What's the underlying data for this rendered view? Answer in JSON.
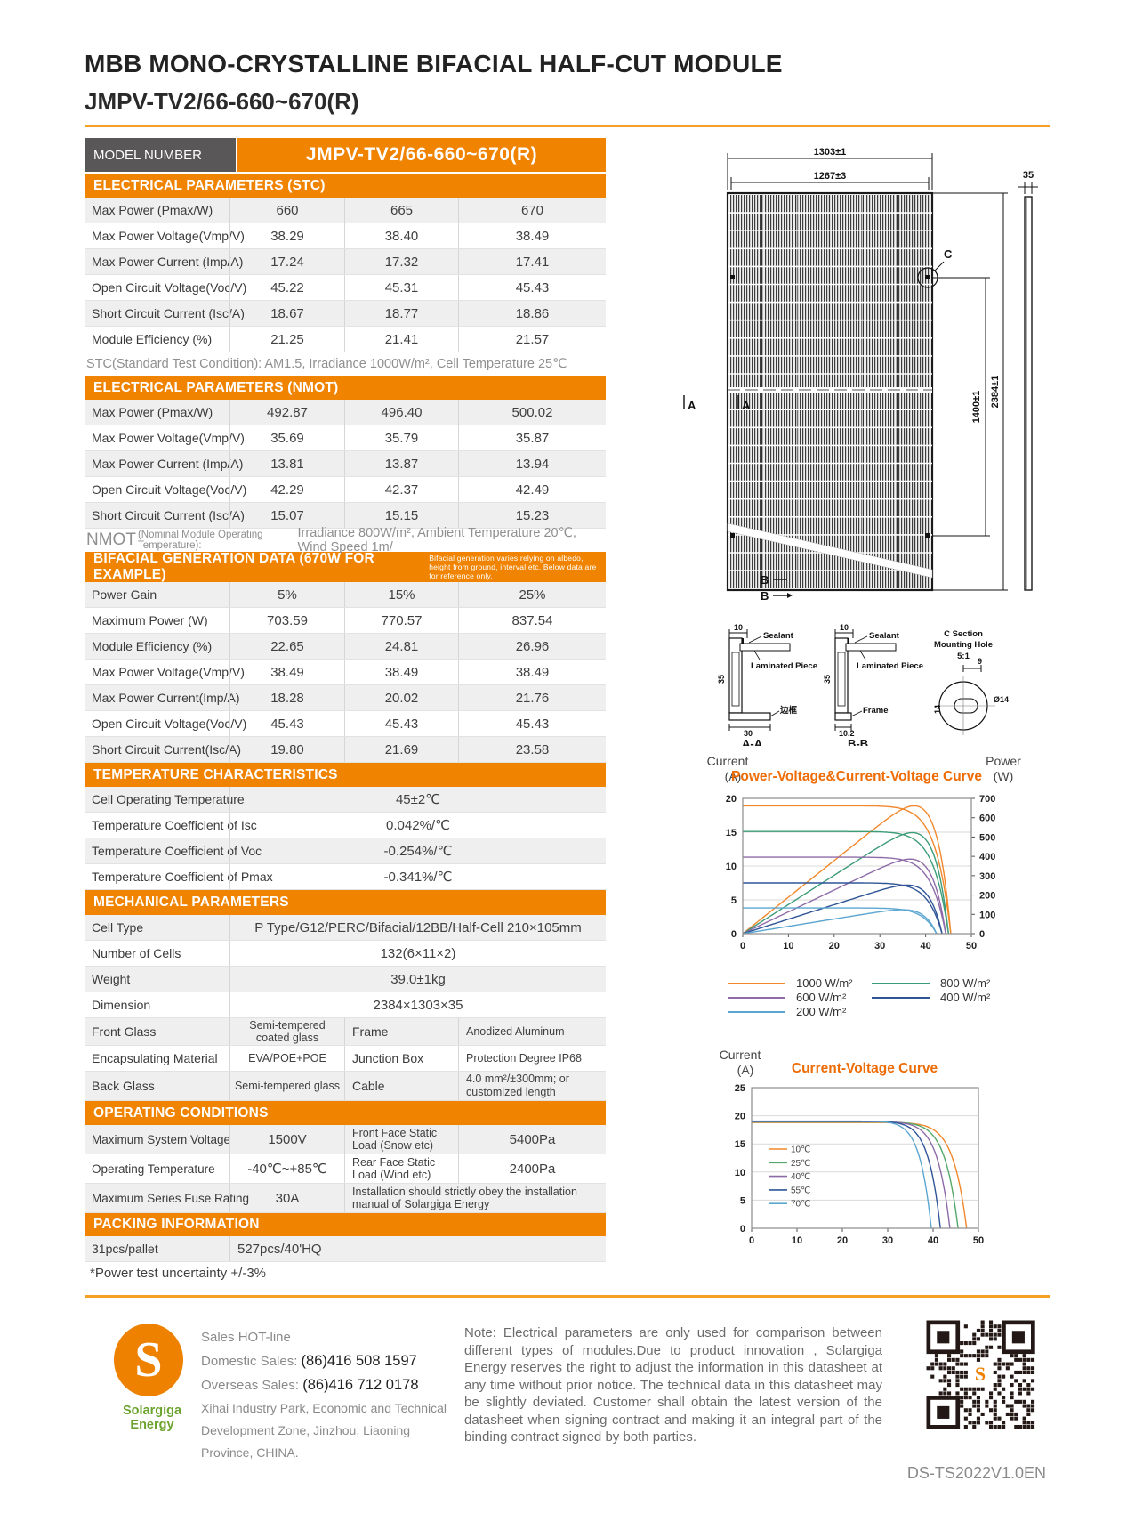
{
  "header": {
    "title": "MBB MONO-CRYSTALLINE BIFACIAL HALF-CUT MODULE",
    "subtitle": "JMPV-TV2/66-660~670(R)"
  },
  "model": {
    "label": "MODEL NUMBER",
    "value": "JMPV-TV2/66-660~670(R)"
  },
  "tables": {
    "stc": {
      "title": "ELECTRICAL PARAMETERS (STC)",
      "rows": [
        {
          "label": "Max Power (Pmax/W)",
          "values": [
            "660",
            "665",
            "670"
          ]
        },
        {
          "label": "Max Power Voltage(Vmp/V)",
          "values": [
            "38.29",
            "38.40",
            "38.49"
          ]
        },
        {
          "label": "Max Power Current (Imp/A)",
          "values": [
            "17.24",
            "17.32",
            "17.41"
          ]
        },
        {
          "label": "Open Circuit Voltage(Voc/V)",
          "values": [
            "45.22",
            "45.31",
            "45.43"
          ]
        },
        {
          "label": "Short Circuit Current (Isc/A)",
          "values": [
            "18.67",
            "18.77",
            "18.86"
          ]
        },
        {
          "label": "Module Efficiency (%)",
          "values": [
            "21.25",
            "21.41",
            "21.57"
          ]
        }
      ],
      "note": "STC(Standard Test Condition): AM1.5, Irradiance 1000W/m², Cell Temperature 25℃"
    },
    "nmot": {
      "title": "ELECTRICAL PARAMETERS (NMOT)",
      "rows": [
        {
          "label": "Max Power (Pmax/W)",
          "values": [
            "492.87",
            "496.40",
            "500.02"
          ]
        },
        {
          "label": "Max Power Voltage(Vmp/V)",
          "values": [
            "35.69",
            "35.79",
            "35.87"
          ]
        },
        {
          "label": "Max Power Current (Imp/A)",
          "values": [
            "13.81",
            "13.87",
            "13.94"
          ]
        },
        {
          "label": "Open Circuit Voltage(Voc/V)",
          "values": [
            "42.29",
            "42.37",
            "42.49"
          ]
        },
        {
          "label": "Short Circuit Current (Isc/A)",
          "values": [
            "15.07",
            "15.15",
            "15.23"
          ]
        }
      ],
      "note_prefix": "NMOT",
      "note_paren": "(Nominal Module Operating Temperature):",
      "note_rest": "Irradiance 800W/m², Ambient Temperature 20℃, Wind Speed 1m/"
    },
    "bifacial": {
      "title": "BIFACIAL GENERATION DATA (670W FOR EXAMPLE)",
      "title_note": "Bifacial generation varies relying on albedo, height from ground, interval etc. Below data are for reference only.",
      "rows": [
        {
          "label": "Power Gain",
          "values": [
            "5%",
            "15%",
            "25%"
          ]
        },
        {
          "label": "Maximum Power (W)",
          "values": [
            "703.59",
            "770.57",
            "837.54"
          ]
        },
        {
          "label": "Module Efficiency (%)",
          "values": [
            "22.65",
            "24.81",
            "26.96"
          ]
        },
        {
          "label": "Max Power Voltage(Vmp/V)",
          "values": [
            "38.49",
            "38.49",
            "38.49"
          ]
        },
        {
          "label": "Max Power Current(Imp/A)",
          "values": [
            "18.28",
            "20.02",
            "21.76"
          ]
        },
        {
          "label": "Open Circuit Voltage(Voc/V)",
          "values": [
            "45.43",
            "45.43",
            "45.43"
          ]
        },
        {
          "label": "Short Circuit Current(Isc/A)",
          "values": [
            "19.80",
            "21.69",
            "23.58"
          ]
        }
      ]
    },
    "temperature": {
      "title": "TEMPERATURE CHARACTERISTICS",
      "rows": [
        {
          "label": "Cell Operating Temperature",
          "values": [
            "45±2℃"
          ]
        },
        {
          "label": "Temperature Coefficient of Isc",
          "values": [
            "0.042%/℃"
          ]
        },
        {
          "label": "Temperature Coefficient of Voc",
          "values": [
            "-0.254%/℃"
          ]
        },
        {
          "label": "Temperature Coefficient of Pmax",
          "values": [
            "-0.341%/℃"
          ]
        }
      ]
    },
    "mechanical": {
      "title": "MECHANICAL PARAMETERS",
      "rows": [
        {
          "label": "Cell Type",
          "values": [
            "P Type/G12/PERC/Bifacial/12BB/Half-Cell 210×105mm"
          ]
        },
        {
          "label": "Number of Cells",
          "values": [
            "132(6×11×2)"
          ]
        },
        {
          "label": "Weight",
          "values": [
            "39.0±1kg"
          ]
        },
        {
          "label": "Dimension",
          "values": [
            "2384×1303×35"
          ]
        },
        {
          "cells": [
            {
              "t": "Front Glass",
              "w": "c0",
              "lbl": 1
            },
            {
              "t": "Semi-tempered coated glass",
              "w": "c1",
              "sm": 1
            },
            {
              "t": "Frame",
              "w": "c2",
              "lbl": 1
            },
            {
              "t": "Anodized Aluminum",
              "w": "c3",
              "al": "l",
              "sm": 1
            }
          ]
        },
        {
          "cells": [
            {
              "t": "Encapsulating Material",
              "w": "c0",
              "lbl": 1
            },
            {
              "t": "EVA/POE+POE",
              "w": "c1",
              "sm": 1
            },
            {
              "t": "Junction Box",
              "w": "c2",
              "lbl": 1
            },
            {
              "t": "Protection Degree IP68",
              "w": "c3",
              "al": "l",
              "sm": 1
            }
          ]
        },
        {
          "cells": [
            {
              "t": "Back Glass",
              "w": "c0",
              "lbl": 1
            },
            {
              "t": "Semi-tempered glass",
              "w": "c1",
              "sm": 1
            },
            {
              "t": "Cable",
              "w": "c2",
              "lbl": 1
            },
            {
              "t": "4.0 mm²/±300mm; or customized length",
              "w": "c3",
              "al": "l",
              "sm": 1,
              "wrap": 1
            }
          ]
        }
      ]
    },
    "operating": {
      "title": "OPERATING CONDITIONS",
      "rows": [
        {
          "cells": [
            {
              "t": "Maximum System Voltage",
              "w": "c0",
              "lbl": 1
            },
            {
              "t": "1500V",
              "w": "c1"
            },
            {
              "t": "Front Face Static Load (Snow etc)",
              "w": "c2",
              "al": "l",
              "wrap": 1
            },
            {
              "t": "5400Pa",
              "w": "c3"
            }
          ]
        },
        {
          "cells": [
            {
              "t": "Operating Temperature",
              "w": "c0",
              "lbl": 1
            },
            {
              "t": "-40℃~+85℃",
              "w": "c1"
            },
            {
              "t": "Rear Face Static Load (Wind etc)",
              "w": "c2",
              "al": "l",
              "wrap": 1
            },
            {
              "t": "2400Pa",
              "w": "c3"
            }
          ]
        },
        {
          "cells": [
            {
              "t": "Maximum Series Fuse Rating",
              "w": "c0",
              "lbl": 1
            },
            {
              "t": "30A",
              "w": "c1"
            },
            {
              "t": "Installation should strictly obey the installation manual of Solargiga Energy",
              "w": "cwide",
              "al": "l",
              "wrap": 1
            }
          ]
        }
      ]
    },
    "packing": {
      "title": "PACKING INFORMATION",
      "rows": [
        {
          "cells": [
            {
              "t": "31pcs/pallet",
              "w": "c0",
              "lbl": 1
            },
            {
              "t": "527pcs/40'HQ",
              "w": "cspan",
              "al": "l"
            }
          ]
        }
      ]
    },
    "footnote": "*Power test uncertainty  +/-3%"
  },
  "drawing": {
    "dim_width_outer": "1303±1",
    "dim_width_inner": "1267±3",
    "dim_thickness": "35",
    "dim_hole_span": "1400±1",
    "dim_height": "2384±1",
    "mark_a1": "A",
    "mark_a2": "A",
    "mark_b1": "B",
    "mark_b2": "B",
    "mark_c": "C",
    "section_a": {
      "label": "A-A",
      "dim_top": "10",
      "sealant": "Sealant",
      "laminated": "Laminated Piece",
      "dim_side": "35",
      "dim_bottom": "30",
      "frame": "边框"
    },
    "section_b": {
      "label": "B-B",
      "dim_top": "10",
      "sealant": "Sealant",
      "laminated": "Laminated Piece",
      "dim_side": "35",
      "dim_bottom": "10.2",
      "frame": "Frame"
    },
    "section_c": {
      "line1": "C Section",
      "line2": "Mounting Hole",
      "scale": "5:1",
      "dim_top": "9",
      "dim_side": "14",
      "dim_dia": "Ø14"
    }
  },
  "chart_data": [
    {
      "type": "line",
      "title": "Power-Voltage&Current-Voltage Curve",
      "left_label_1": "Current",
      "left_label_2": "(A)",
      "right_label_1": "Power",
      "right_label_2": "(W)",
      "xlim": [
        0,
        50
      ],
      "x_ticks": [
        0,
        10,
        20,
        30,
        40,
        50
      ],
      "y_left_lim": [
        0,
        20
      ],
      "y_left_ticks": [
        0,
        5,
        10,
        15,
        20
      ],
      "y_right_lim": [
        0,
        700
      ],
      "y_right_ticks": [
        0,
        100,
        200,
        300,
        400,
        500,
        600,
        700
      ],
      "grid": true,
      "legend_position": "below",
      "series": [
        {
          "name": "1000 W/m²",
          "color": "#F0882C",
          "isc": 18.9,
          "voc": 45.5,
          "pmax": 670
        },
        {
          "name": "800 W/m²",
          "color": "#3D9C78",
          "isc": 15.1,
          "voc": 45.0,
          "pmax": 531
        },
        {
          "name": "600 W/m²",
          "color": "#8E6BA8",
          "isc": 11.3,
          "voc": 44.4,
          "pmax": 394
        },
        {
          "name": "400 W/m²",
          "color": "#2F5597",
          "isc": 7.5,
          "voc": 43.6,
          "pmax": 258
        },
        {
          "name": "200 W/m²",
          "color": "#5BA6D0",
          "isc": 3.8,
          "voc": 42.4,
          "pmax": 127
        }
      ]
    },
    {
      "type": "line",
      "title": "Current-Voltage Curve",
      "left_label_1": "Current",
      "left_label_2": "(A)",
      "xlim": [
        0,
        50
      ],
      "x_ticks": [
        0,
        10,
        20,
        30,
        40,
        50
      ],
      "y_left_lim": [
        0,
        25
      ],
      "y_left_ticks": [
        0,
        5,
        10,
        15,
        20,
        25
      ],
      "grid": true,
      "legend_position": "inside-left",
      "series": [
        {
          "name": "10℃",
          "color": "#F0882C",
          "isc": 18.8,
          "voc": 47.4
        },
        {
          "name": "25℃",
          "color": "#55A868",
          "isc": 18.9,
          "voc": 45.5
        },
        {
          "name": "40℃",
          "color": "#8E6BA8",
          "isc": 18.95,
          "voc": 43.7
        },
        {
          "name": "55℃",
          "color": "#2F5597",
          "isc": 19.0,
          "voc": 41.6
        },
        {
          "name": "70℃",
          "color": "#5BA6D0",
          "isc": 19.05,
          "voc": 39.6
        }
      ]
    }
  ],
  "footer": {
    "logo_letter": "S",
    "logo_name": "Solargiga Energy",
    "hotline": "Sales HOT-line",
    "domestic_label": "Domestic Sales: ",
    "domestic_number": "(86)416 508 1597",
    "overseas_label": "Overseas Sales: ",
    "overseas_number": "(86)416 712 0178",
    "address_1": "Xihai Industry Park, Economic and Technical",
    "address_2": "Development Zone, Jinzhou, Liaoning",
    "address_3": "Province, CHINA.",
    "note": "Note:  Electrical parameters are only used for comparison between different types of modules.Due to product innovation , Solargiga Energy reserves the right to adjust the information in this datasheet at any time without prior notice. The technical data in this datasheet may be slightly deviated. Customer shall obtain the latest version of the datasheet when signing contract and making it an integral part of the binding contract signed by both parties.",
    "doc_code": "DS-TS2022V1.0EN"
  }
}
